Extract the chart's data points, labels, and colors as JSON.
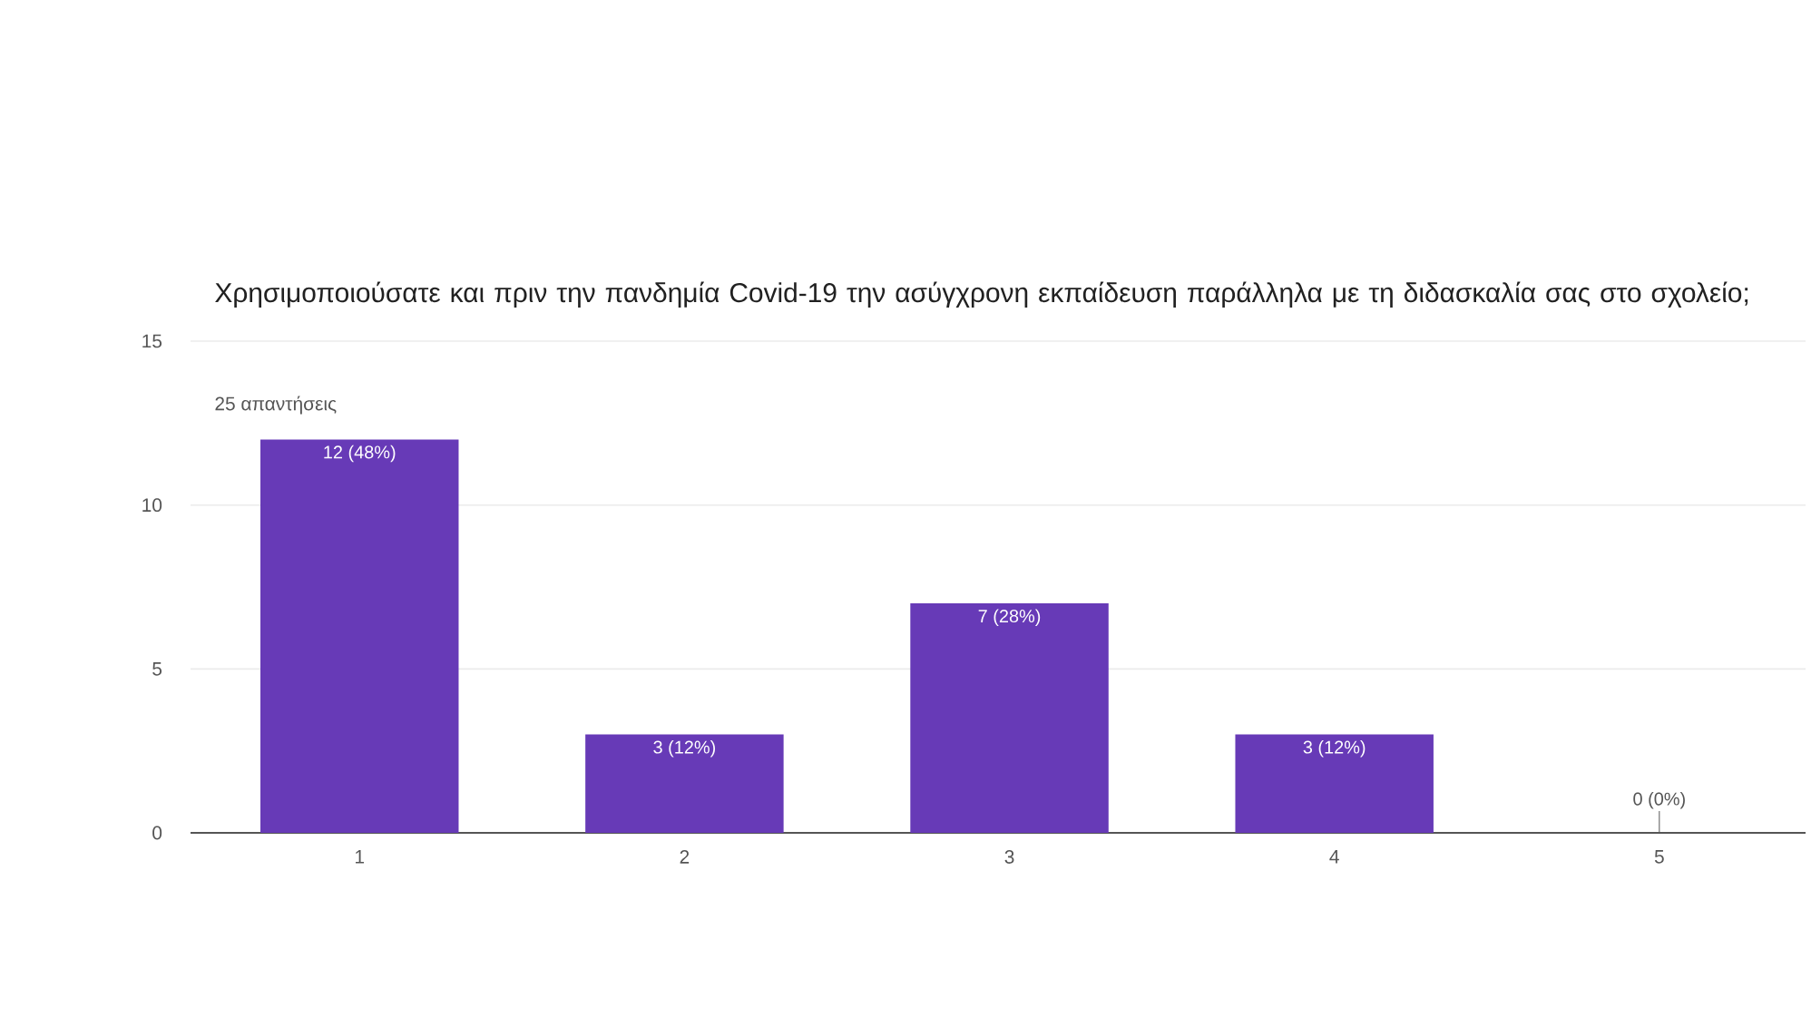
{
  "chart_data": {
    "type": "bar",
    "title": "Χρησιμοποιούσατε και πριν την πανδημία Covid-19 την ασύγχρονη εκπαίδευση παράλληλα με τη διδασκαλία σας στο σχολείο;",
    "subtitle": "25 απαντήσεις",
    "categories": [
      "1",
      "2",
      "3",
      "4",
      "5"
    ],
    "values": [
      12,
      3,
      7,
      3,
      0
    ],
    "value_labels": [
      "12 (48%)",
      "3 (12%)",
      "7 (28%)",
      "3 (12%)",
      "0 (0%)"
    ],
    "color": "#673ab7",
    "ylim": [
      0,
      15
    ],
    "yticks": [
      0,
      5,
      10,
      15
    ],
    "grid": "y"
  }
}
